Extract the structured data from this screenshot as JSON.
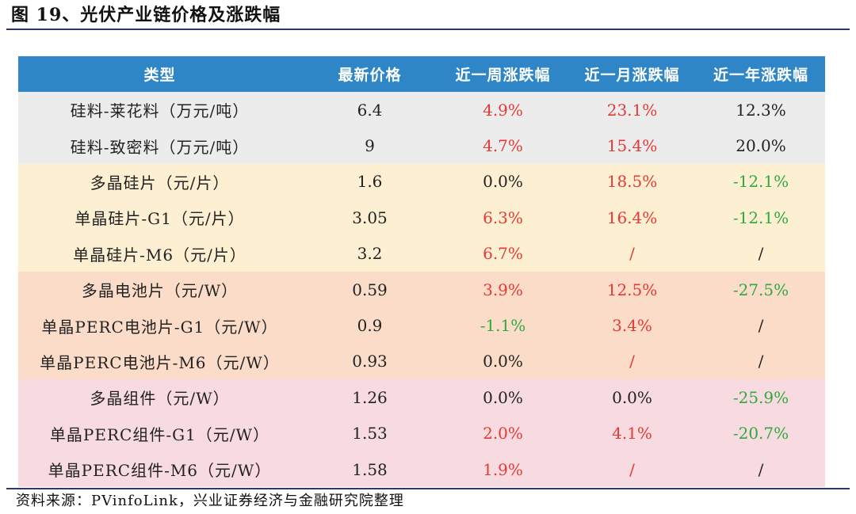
{
  "figure": {
    "title": "图 19、光伏产业链价格及涨跌幅",
    "source": "资料来源：PVinfoLink，兴业证券经济与金融研究院整理"
  },
  "colors": {
    "header_bg": "#2e86c6",
    "up": "#e53935",
    "down": "#2eaa3e",
    "group_silicon": "#ececec",
    "group_wafer": "#fdf0d2",
    "group_cell": "#fbdcc8",
    "group_module": "#f7dbe0"
  },
  "table": {
    "headers": [
      "类型",
      "最新价格",
      "近一周涨跌幅",
      "近一月涨跌幅",
      "近一年涨跌幅"
    ],
    "rows": [
      {
        "group": "silicon",
        "name": "硅料-莱花料（万元/吨）",
        "price": "6.4",
        "week": "4.9%",
        "month": "23.1%",
        "year": "12.3%",
        "week_tone": "pos",
        "month_tone": "pos",
        "year_tone": "neu"
      },
      {
        "group": "silicon",
        "name": "硅料-致密料（万元/吨）",
        "price": "9",
        "week": "4.7%",
        "month": "15.4%",
        "year": "20.0%",
        "week_tone": "pos",
        "month_tone": "pos",
        "year_tone": "neu"
      },
      {
        "group": "wafer",
        "name": "多晶硅片（元/片）",
        "price": "1.6",
        "week": "0.0%",
        "month": "18.5%",
        "year": "-12.1%",
        "week_tone": "neu",
        "month_tone": "pos",
        "year_tone": "neg"
      },
      {
        "group": "wafer",
        "name": "单晶硅片-G1（元/片）",
        "price": "3.05",
        "week": "6.3%",
        "month": "16.4%",
        "year": "-12.1%",
        "week_tone": "pos",
        "month_tone": "pos",
        "year_tone": "neg"
      },
      {
        "group": "wafer",
        "name": "单晶硅片-M6（元/片）",
        "price": "3.2",
        "week": "6.7%",
        "month": "/",
        "year": "/",
        "week_tone": "pos",
        "month_tone": "pos",
        "year_tone": "neu"
      },
      {
        "group": "cell",
        "name": "多晶电池片（元/W）",
        "price": "0.59",
        "week": "3.9%",
        "month": "12.5%",
        "year": "-27.5%",
        "week_tone": "pos",
        "month_tone": "pos",
        "year_tone": "neg"
      },
      {
        "group": "cell",
        "name": "单晶PERC电池片-G1（元/W）",
        "price": "0.9",
        "week": "-1.1%",
        "month": "3.4%",
        "year": "/",
        "week_tone": "neg",
        "month_tone": "pos",
        "year_tone": "neu"
      },
      {
        "group": "cell",
        "name": "单晶PERC电池片-M6（元/W）",
        "price": "0.93",
        "week": "0.0%",
        "month": "/",
        "year": "/",
        "week_tone": "neu",
        "month_tone": "pos",
        "year_tone": "neu"
      },
      {
        "group": "module",
        "name": "多晶组件（元/W）",
        "price": "1.26",
        "week": "0.0%",
        "month": "0.0%",
        "year": "-25.9%",
        "week_tone": "neu",
        "month_tone": "neu",
        "year_tone": "neg"
      },
      {
        "group": "module",
        "name": "单晶PERC组件-G1（元/W）",
        "price": "1.53",
        "week": "2.0%",
        "month": "4.1%",
        "year": "-20.7%",
        "week_tone": "pos",
        "month_tone": "pos",
        "year_tone": "neg"
      },
      {
        "group": "module",
        "name": "单晶PERC组件-M6（元/W）",
        "price": "1.58",
        "week": "1.9%",
        "month": "/",
        "year": "/",
        "week_tone": "pos",
        "month_tone": "pos",
        "year_tone": "neu"
      }
    ]
  }
}
